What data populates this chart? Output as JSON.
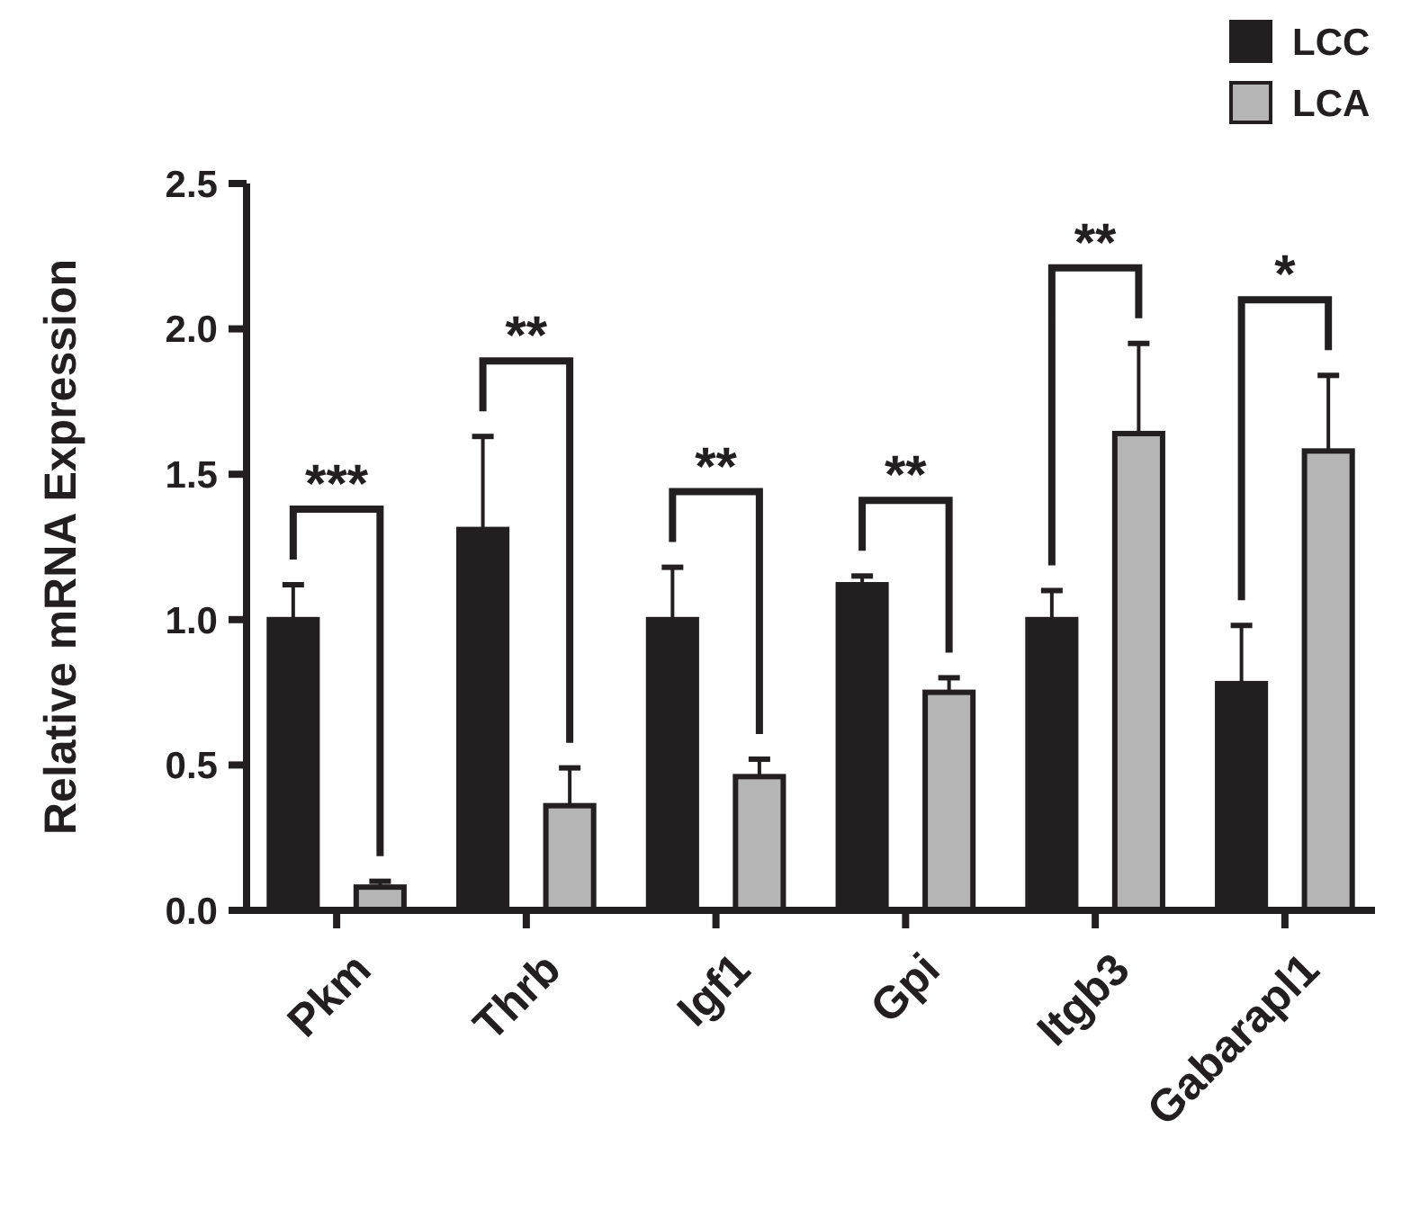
{
  "chart_data": {
    "type": "bar",
    "ylabel": "Relative mRNA Expression",
    "categories": [
      "Pkm",
      "Thrb",
      "Igf1",
      "Gpi",
      "Itgb3",
      "Gabarapl1"
    ],
    "series": [
      {
        "name": "LCC",
        "color": "#231f20",
        "values": [
          1.0,
          1.31,
          1.0,
          1.12,
          1.0,
          0.78
        ],
        "errors": [
          0.12,
          0.32,
          0.18,
          0.03,
          0.1,
          0.2
        ]
      },
      {
        "name": "LCA",
        "color": "#b5b5b5",
        "values": [
          0.08,
          0.36,
          0.46,
          0.75,
          1.64,
          1.58
        ],
        "errors": [
          0.02,
          0.13,
          0.06,
          0.05,
          0.31,
          0.26
        ]
      }
    ],
    "ylim": [
      0,
      2.5
    ],
    "yticks": [
      {
        "value": 0,
        "label": "0.0"
      },
      {
        "value": 0.5,
        "label": "0.5"
      },
      {
        "value": 1,
        "label": "1.0"
      },
      {
        "value": 1.5,
        "label": "1.5"
      },
      {
        "value": 2,
        "label": "2.0"
      },
      {
        "value": 2.5,
        "label": "2.5"
      }
    ],
    "legend": "top right",
    "grid": false,
    "annotations": [
      "***",
      "**",
      "**",
      "**",
      "**",
      "*"
    ]
  }
}
